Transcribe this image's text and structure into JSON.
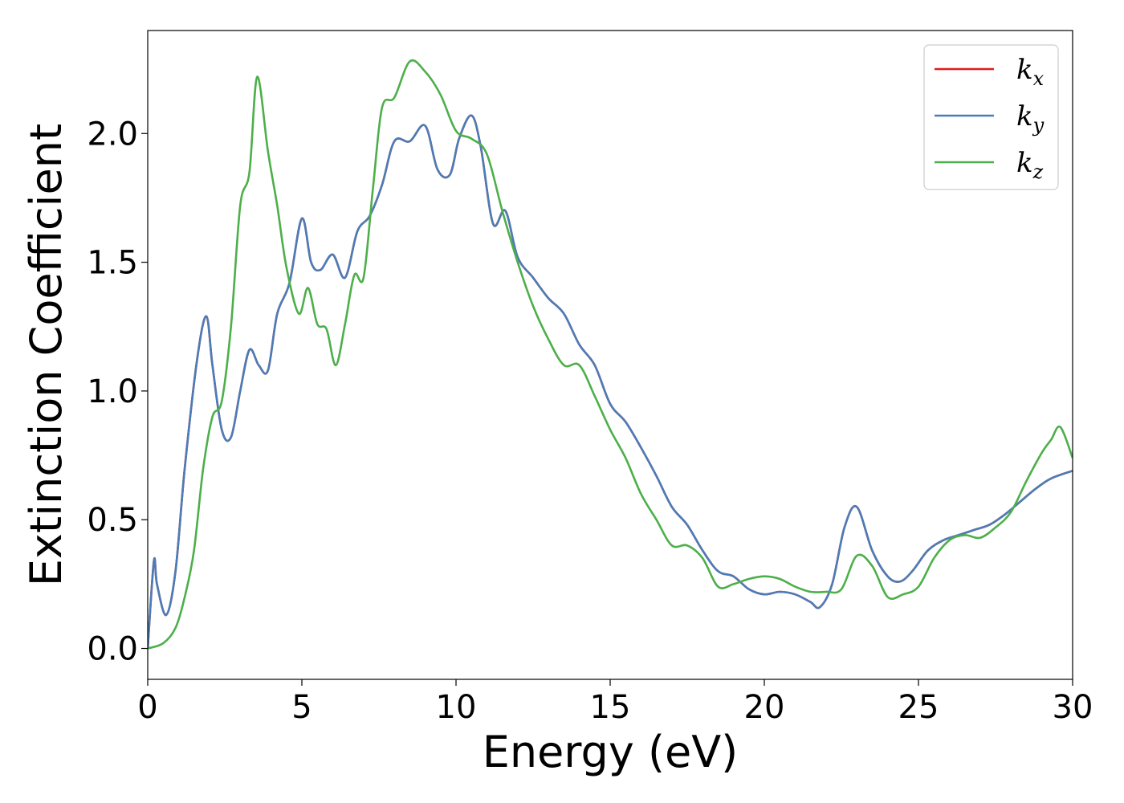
{
  "chart_data": {
    "type": "line",
    "xlabel": "Energy (eV)",
    "ylabel": "Extinction Coefficient",
    "xlim": [
      0,
      30
    ],
    "ylim": [
      -0.12,
      2.4
    ],
    "xticks": [
      0,
      5,
      10,
      15,
      20,
      25,
      30
    ],
    "xtick_labels": [
      "0",
      "5",
      "10",
      "15",
      "20",
      "25",
      "30"
    ],
    "yticks": [
      0.0,
      0.5,
      1.0,
      1.5,
      2.0
    ],
    "ytick_labels": [
      "0.0",
      "0.5",
      "1.0",
      "1.5",
      "2.0"
    ],
    "grid": false,
    "legend_position": "top-right",
    "series": [
      {
        "name": "k_x",
        "label_base": "k",
        "label_sub": "x",
        "color": "#e41a1c",
        "x": [
          0,
          0.2,
          0.3,
          0.6,
          0.9,
          1.2,
          1.6,
          1.9,
          2.1,
          2.4,
          2.7,
          3.0,
          3.3,
          3.6,
          3.9,
          4.2,
          4.6,
          5.0,
          5.3,
          5.6,
          6.0,
          6.4,
          6.8,
          7.2,
          7.6,
          8.0,
          8.5,
          9.0,
          9.4,
          9.8,
          10.1,
          10.5,
          10.8,
          11.2,
          11.6,
          12.0,
          12.5,
          13.0,
          13.5,
          14.0,
          14.5,
          15.0,
          15.5,
          16.0,
          16.5,
          17.0,
          17.5,
          18.0,
          18.5,
          19.0,
          19.5,
          20.0,
          20.5,
          21.0,
          21.5,
          21.8,
          22.2,
          22.6,
          23.0,
          23.5,
          24.0,
          24.4,
          24.8,
          25.3,
          25.8,
          26.3,
          26.8,
          27.3,
          27.8,
          28.3,
          28.8,
          29.3,
          30.0
        ],
        "y": [
          0.0,
          0.34,
          0.25,
          0.13,
          0.3,
          0.7,
          1.12,
          1.29,
          1.1,
          0.85,
          0.82,
          1.0,
          1.16,
          1.1,
          1.08,
          1.3,
          1.42,
          1.67,
          1.5,
          1.47,
          1.53,
          1.44,
          1.62,
          1.68,
          1.8,
          1.97,
          1.97,
          2.03,
          1.86,
          1.84,
          1.98,
          2.07,
          1.95,
          1.65,
          1.7,
          1.52,
          1.44,
          1.36,
          1.3,
          1.18,
          1.1,
          0.95,
          0.88,
          0.78,
          0.67,
          0.55,
          0.48,
          0.38,
          0.3,
          0.28,
          0.23,
          0.21,
          0.22,
          0.21,
          0.18,
          0.16,
          0.25,
          0.47,
          0.55,
          0.38,
          0.28,
          0.26,
          0.3,
          0.38,
          0.42,
          0.44,
          0.46,
          0.48,
          0.52,
          0.57,
          0.62,
          0.66,
          0.69
        ]
      },
      {
        "name": "k_y",
        "label_base": "k",
        "label_sub": "y",
        "color": "#4a7db8",
        "x": [
          0,
          0.2,
          0.3,
          0.6,
          0.9,
          1.2,
          1.6,
          1.9,
          2.1,
          2.4,
          2.7,
          3.0,
          3.3,
          3.6,
          3.9,
          4.2,
          4.6,
          5.0,
          5.3,
          5.6,
          6.0,
          6.4,
          6.8,
          7.2,
          7.6,
          8.0,
          8.5,
          9.0,
          9.4,
          9.8,
          10.1,
          10.5,
          10.8,
          11.2,
          11.6,
          12.0,
          12.5,
          13.0,
          13.5,
          14.0,
          14.5,
          15.0,
          15.5,
          16.0,
          16.5,
          17.0,
          17.5,
          18.0,
          18.5,
          19.0,
          19.5,
          20.0,
          20.5,
          21.0,
          21.5,
          21.8,
          22.2,
          22.6,
          23.0,
          23.5,
          24.0,
          24.4,
          24.8,
          25.3,
          25.8,
          26.3,
          26.8,
          27.3,
          27.8,
          28.3,
          28.8,
          29.3,
          30.0
        ],
        "y": [
          0.0,
          0.34,
          0.25,
          0.13,
          0.3,
          0.7,
          1.12,
          1.29,
          1.1,
          0.85,
          0.82,
          1.0,
          1.16,
          1.1,
          1.08,
          1.3,
          1.42,
          1.67,
          1.5,
          1.47,
          1.53,
          1.44,
          1.62,
          1.68,
          1.8,
          1.97,
          1.97,
          2.03,
          1.86,
          1.84,
          1.98,
          2.07,
          1.95,
          1.65,
          1.7,
          1.52,
          1.44,
          1.36,
          1.3,
          1.18,
          1.1,
          0.95,
          0.88,
          0.78,
          0.67,
          0.55,
          0.48,
          0.38,
          0.3,
          0.28,
          0.23,
          0.21,
          0.22,
          0.21,
          0.18,
          0.16,
          0.25,
          0.47,
          0.55,
          0.38,
          0.28,
          0.26,
          0.3,
          0.38,
          0.42,
          0.44,
          0.46,
          0.48,
          0.52,
          0.57,
          0.62,
          0.66,
          0.69
        ]
      },
      {
        "name": "k_z",
        "label_base": "k",
        "label_sub": "z",
        "color": "#4daf4a",
        "x": [
          0,
          0.5,
          0.9,
          1.2,
          1.5,
          1.8,
          2.1,
          2.4,
          2.7,
          3.0,
          3.3,
          3.55,
          3.9,
          4.2,
          4.5,
          4.9,
          5.2,
          5.5,
          5.8,
          6.1,
          6.4,
          6.7,
          7.0,
          7.3,
          7.6,
          8.0,
          8.5,
          9.0,
          9.5,
          10.0,
          10.5,
          11.0,
          11.5,
          12.0,
          12.5,
          13.0,
          13.5,
          14.0,
          14.5,
          15.0,
          15.5,
          16.0,
          16.5,
          17.0,
          17.5,
          18.0,
          18.5,
          19.0,
          19.5,
          20.0,
          20.5,
          21.0,
          21.5,
          22.0,
          22.5,
          23.0,
          23.5,
          24.0,
          24.5,
          25.0,
          25.5,
          26.0,
          26.5,
          27.0,
          27.5,
          28.0,
          28.5,
          29.0,
          29.3,
          29.6,
          30.0
        ],
        "y": [
          0.0,
          0.02,
          0.08,
          0.2,
          0.38,
          0.7,
          0.9,
          0.96,
          1.25,
          1.72,
          1.85,
          2.22,
          1.93,
          1.72,
          1.48,
          1.3,
          1.4,
          1.26,
          1.24,
          1.1,
          1.26,
          1.45,
          1.44,
          1.78,
          2.1,
          2.14,
          2.28,
          2.24,
          2.15,
          2.01,
          1.98,
          1.92,
          1.7,
          1.5,
          1.33,
          1.2,
          1.1,
          1.1,
          0.98,
          0.85,
          0.74,
          0.6,
          0.5,
          0.4,
          0.4,
          0.35,
          0.24,
          0.25,
          0.27,
          0.28,
          0.27,
          0.24,
          0.22,
          0.22,
          0.23,
          0.36,
          0.32,
          0.2,
          0.21,
          0.24,
          0.35,
          0.42,
          0.44,
          0.43,
          0.47,
          0.53,
          0.65,
          0.76,
          0.81,
          0.86,
          0.74
        ]
      }
    ]
  }
}
